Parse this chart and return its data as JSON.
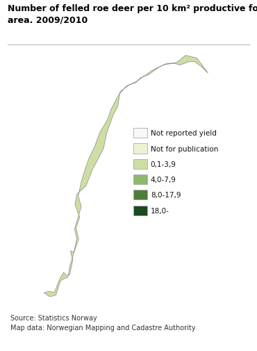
{
  "title_line1": "Number of felled roe deer per 10 km² productive forest",
  "title_line2": "area. 2009/2010",
  "title_fontsize": 9,
  "title_fontweight": "bold",
  "source_text": "Source: Statistics Norway\nMap data: Norwegian Mapping and Cadastre Authority",
  "source_fontsize": 7,
  "legend_labels": [
    "Not reported yield",
    "Not for publication",
    "0,1-3,9",
    "4,0-7,9",
    "8,0-17,9",
    "18,0-"
  ],
  "legend_colors": [
    "#f8f8f8",
    "#eef2d5",
    "#cddea3",
    "#8eb86a",
    "#4e7d3a",
    "#1b4a1e"
  ],
  "legend_edgecolor": "#aaaaaa",
  "map_edge_color": "#888888",
  "background_color": "#ffffff",
  "fig_width": 3.7,
  "fig_height": 5.06,
  "dpi": 100,
  "norway_municipalities_seed": 42,
  "color_weights": [
    0.05,
    0.1,
    0.4,
    0.25,
    0.12,
    0.08
  ]
}
